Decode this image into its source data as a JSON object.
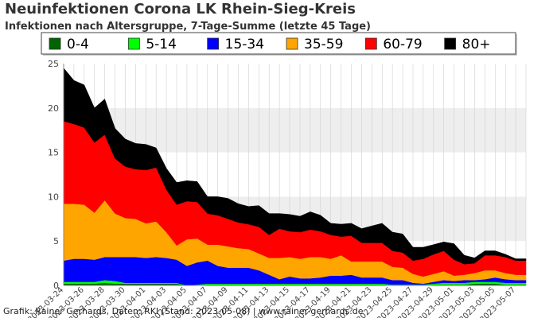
{
  "title": "Neuinfektionen Corona LK Rhein-Sieg-Kreis",
  "subtitle": "Infektionen nach Altersgruppe, 7-Tage-Summe (letzte 45 Tage)",
  "footer": "Grafik: Rainer Gerhards, Daten: RKI (Stand: 2023-05-08) | www.rainer-gerhards.de",
  "chart_data": {
    "type": "area",
    "stacked": true,
    "title": "Neuinfektionen Corona LK Rhein-Sieg-Kreis",
    "subtitle": "Infektionen nach Altersgruppe, 7-Tage-Summe (letzte 45 Tage)",
    "xlabel": "",
    "ylabel": "",
    "ylim": [
      0,
      25
    ],
    "yticks": [
      0,
      5,
      10,
      15,
      20,
      25
    ],
    "grid": "alternating horizontal bands",
    "legend_position": "top",
    "x": [
      "2023-03-24",
      "2023-03-25",
      "2023-03-26",
      "2023-03-27",
      "2023-03-28",
      "2023-03-29",
      "2023-03-30",
      "2023-03-31",
      "2023-04-01",
      "2023-04-02",
      "2023-04-03",
      "2023-04-04",
      "2023-04-05",
      "2023-04-06",
      "2023-04-07",
      "2023-04-08",
      "2023-04-09",
      "2023-04-10",
      "2023-04-11",
      "2023-04-12",
      "2023-04-13",
      "2023-04-14",
      "2023-04-15",
      "2023-04-16",
      "2023-04-17",
      "2023-04-18",
      "2023-04-19",
      "2023-04-20",
      "2023-04-21",
      "2023-04-22",
      "2023-04-23",
      "2023-04-24",
      "2023-04-25",
      "2023-04-26",
      "2023-04-27",
      "2023-04-28",
      "2023-04-29",
      "2023-04-30",
      "2023-05-01",
      "2023-05-02",
      "2023-05-03",
      "2023-05-04",
      "2023-05-05",
      "2023-05-06",
      "2023-05-07",
      "2023-05-08"
    ],
    "xtick_labels": [
      "2023-03-24",
      "2023-03-26",
      "2023-03-28",
      "2023-03-30",
      "2023-04-01",
      "2023-04-03",
      "2023-04-05",
      "2023-04-07",
      "2023-04-09",
      "2023-04-11",
      "2023-04-13",
      "2023-04-15",
      "2023-04-17",
      "2023-04-19",
      "2023-04-21",
      "2023-04-23",
      "2023-04-25",
      "2023-04-27",
      "2023-04-29",
      "2023-05-01",
      "2023-05-03",
      "2023-05-05",
      "2023-05-07"
    ],
    "series": [
      {
        "name": "0-4",
        "color": "#006400",
        "values": [
          0.2,
          0.2,
          0.2,
          0.2,
          0.3,
          0.2,
          0.2,
          0.2,
          0.2,
          0.2,
          0.2,
          0.2,
          0,
          0,
          0.1,
          0.1,
          0.1,
          0.1,
          0.1,
          0.1,
          0.1,
          0.1,
          0.1,
          0.1,
          0.1,
          0.1,
          0.1,
          0.1,
          0.1,
          0.1,
          0.1,
          0.1,
          0,
          0,
          0,
          0,
          0.1,
          0.1,
          0.1,
          0.1,
          0.2,
          0.2,
          0.2,
          0.1,
          0.1,
          0.1
        ]
      },
      {
        "name": "5-14",
        "color": "#00ff00",
        "values": [
          0.2,
          0.2,
          0.2,
          0.2,
          0.3,
          0.3,
          0.1,
          0.1,
          0.1,
          0.1,
          0.1,
          0.1,
          0,
          0.1,
          0.1,
          0.1,
          0.1,
          0.1,
          0.1,
          0.1,
          0.1,
          0.1,
          0.1,
          0.1,
          0.1,
          0.1,
          0.1,
          0.1,
          0.1,
          0.1,
          0.1,
          0.1,
          0.1,
          0.1,
          0.1,
          0.1,
          0.1,
          0.2,
          0.2,
          0.2,
          0.2,
          0.2,
          0.2,
          0.2,
          0.2,
          0.2
        ]
      },
      {
        "name": "15-34",
        "color": "#0000ff",
        "values": [
          2.4,
          2.6,
          2.6,
          2.5,
          2.6,
          2.7,
          2.9,
          2.9,
          2.8,
          2.9,
          2.8,
          2.6,
          2.2,
          2.5,
          2.6,
          2.0,
          1.8,
          1.8,
          1.8,
          1.5,
          1.0,
          0.5,
          0.8,
          0.6,
          0.6,
          0.7,
          0.9,
          0.9,
          1.0,
          0.7,
          0.7,
          0.7,
          0.5,
          0.5,
          0.2,
          0.1,
          0.2,
          0.3,
          0.2,
          0.3,
          0.2,
          0.3,
          0.5,
          0.4,
          0.3,
          0.3
        ]
      },
      {
        "name": "35-59",
        "color": "#ffa500",
        "values": [
          6.4,
          6.2,
          6.1,
          5.3,
          6.4,
          4.9,
          4.4,
          4.3,
          3.9,
          4.0,
          2.9,
          1.6,
          3.0,
          2.7,
          1.8,
          2.4,
          2.4,
          2.2,
          2.1,
          1.9,
          1.9,
          2.4,
          2.2,
          2.2,
          2.4,
          2.3,
          1.9,
          2.3,
          1.5,
          1.8,
          1.8,
          1.8,
          1.5,
          1.4,
          1.0,
          0.8,
          0.9,
          1.0,
          0.6,
          0.6,
          0.8,
          1.0,
          0.8,
          0.7,
          0.6,
          0.6
        ]
      },
      {
        "name": "60-79",
        "color": "#ff0000",
        "values": [
          9.3,
          9.0,
          8.7,
          7.9,
          7.4,
          6.2,
          5.8,
          5.6,
          6.0,
          6.1,
          4.8,
          4.6,
          4.3,
          4.1,
          3.5,
          3.3,
          3.1,
          2.9,
          2.8,
          3.0,
          2.6,
          3.3,
          2.9,
          3.0,
          3.1,
          2.9,
          2.7,
          2.1,
          2.9,
          2.1,
          2.1,
          2.1,
          1.8,
          1.7,
          1.5,
          2.0,
          2.2,
          2.3,
          1.8,
          1.2,
          1.1,
          1.7,
          1.7,
          1.8,
          1.6,
          1.6
        ]
      },
      {
        "name": "80+",
        "color": "#000000",
        "values": [
          6.0,
          4.9,
          4.8,
          3.9,
          4.0,
          3.4,
          3.1,
          2.9,
          2.9,
          2.2,
          2.4,
          2.5,
          2.3,
          2.3,
          1.9,
          2.1,
          2.3,
          2.1,
          2.0,
          2.4,
          2.4,
          1.7,
          1.9,
          1.8,
          2.0,
          1.8,
          1.3,
          1.4,
          1.4,
          1.6,
          1.9,
          2.2,
          2.1,
          2.1,
          1.5,
          1.3,
          1.1,
          1.0,
          1.8,
          1.0,
          0.6,
          0.5,
          0.5,
          0.3,
          0.2,
          0.2
        ]
      }
    ]
  }
}
